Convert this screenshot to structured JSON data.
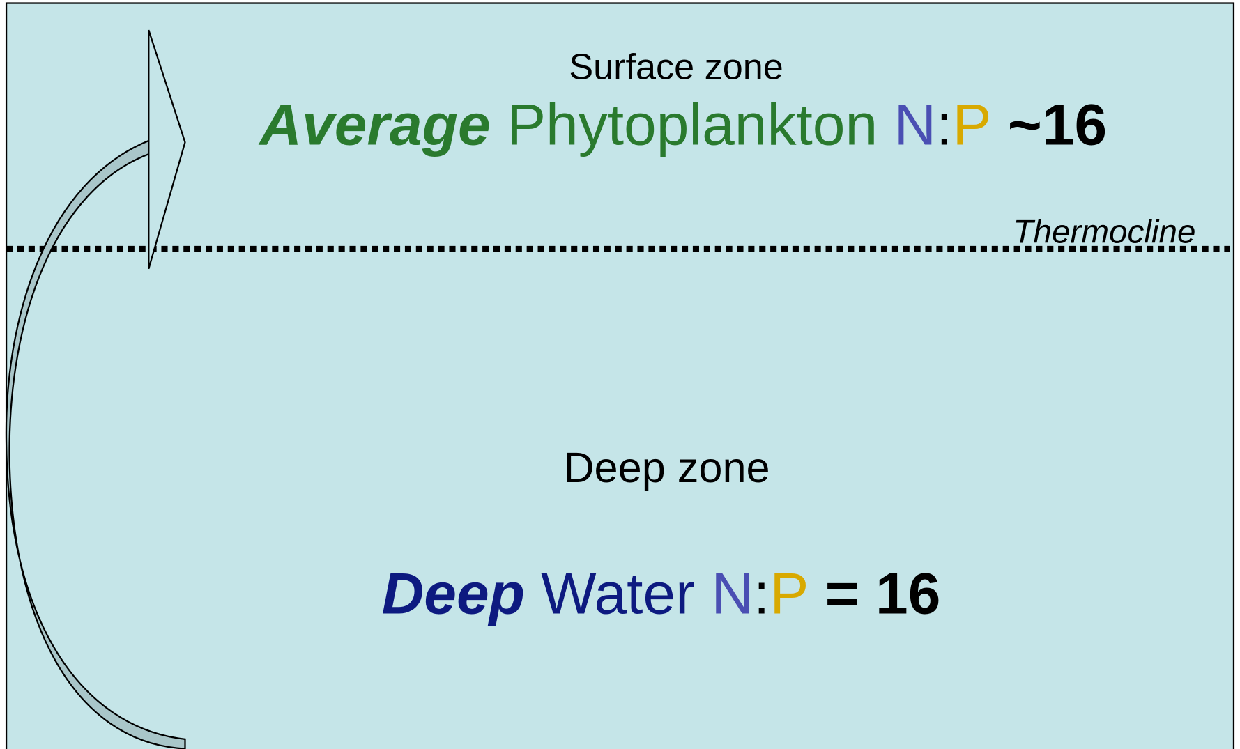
{
  "surface": {
    "zone": "Surface zone",
    "qualifier": "Average",
    "subject": "Phytoplankton",
    "n": "N",
    "sep": ":",
    "p": "P",
    "ratio": "~16"
  },
  "thermocline": "Thermocline",
  "deep": {
    "zone": "Deep zone",
    "qualifier": "Deep",
    "subject": "Water",
    "n": "N",
    "sep": ":",
    "p": "P",
    "ratio": "= 16"
  }
}
